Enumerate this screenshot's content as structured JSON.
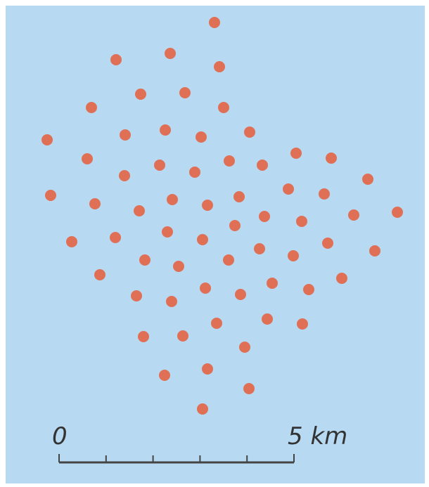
{
  "map": {
    "background": "#b7d9f2",
    "dot_color": "#e07055",
    "line_color": "#444444"
  },
  "scale_bar": {
    "start_label": "0",
    "end_label": "5 km",
    "segments": 5
  }
}
